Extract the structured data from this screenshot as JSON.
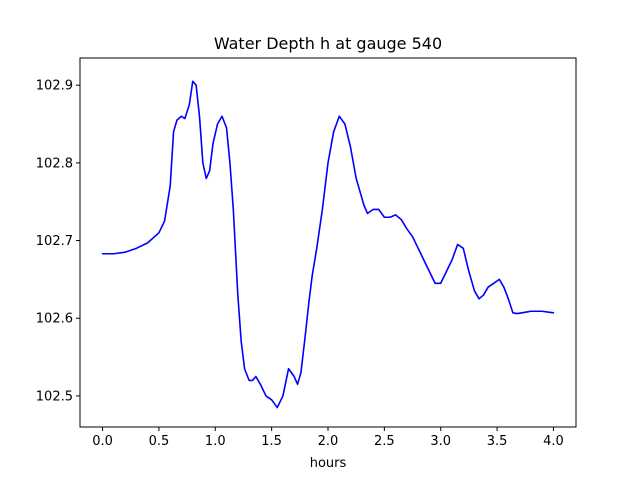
{
  "chart_data": {
    "type": "line",
    "title": "Water Depth h at gauge 540",
    "xlabel": "hours",
    "ylabel": "",
    "xlim": [
      -0.2,
      4.2
    ],
    "ylim": [
      102.46,
      102.935
    ],
    "xticks": [
      0.0,
      0.5,
      1.0,
      1.5,
      2.0,
      2.5,
      3.0,
      3.5,
      4.0
    ],
    "xtick_labels": [
      "0.0",
      "0.5",
      "1.0",
      "1.5",
      "2.0",
      "2.5",
      "3.0",
      "3.5",
      "4.0"
    ],
    "yticks": [
      102.5,
      102.6,
      102.7,
      102.8,
      102.9
    ],
    "ytick_labels": [
      "102.5",
      "102.6",
      "102.7",
      "102.8",
      "102.9"
    ],
    "grid": false,
    "series": [
      {
        "color": "#0000ff",
        "x": [
          0.0,
          0.1,
          0.2,
          0.3,
          0.4,
          0.5,
          0.55,
          0.6,
          0.63,
          0.66,
          0.7,
          0.73,
          0.77,
          0.8,
          0.83,
          0.86,
          0.89,
          0.92,
          0.95,
          0.98,
          1.02,
          1.06,
          1.1,
          1.13,
          1.16,
          1.2,
          1.23,
          1.26,
          1.3,
          1.33,
          1.36,
          1.4,
          1.45,
          1.5,
          1.55,
          1.6,
          1.65,
          1.7,
          1.73,
          1.76,
          1.8,
          1.83,
          1.86,
          1.9,
          1.95,
          2.0,
          2.05,
          2.1,
          2.15,
          2.2,
          2.25,
          2.29,
          2.32,
          2.35,
          2.4,
          2.45,
          2.5,
          2.55,
          2.6,
          2.65,
          2.7,
          2.75,
          2.8,
          2.85,
          2.9,
          2.95,
          3.0,
          3.05,
          3.1,
          3.15,
          3.2,
          3.25,
          3.3,
          3.34,
          3.38,
          3.42,
          3.47,
          3.52,
          3.56,
          3.6,
          3.64,
          3.68,
          3.72,
          3.76,
          3.8,
          3.85,
          3.9,
          3.95,
          4.0
        ],
        "y": [
          102.683,
          102.683,
          102.685,
          102.69,
          102.697,
          102.71,
          102.725,
          102.77,
          102.84,
          102.855,
          102.86,
          102.857,
          102.875,
          102.905,
          102.9,
          102.86,
          102.8,
          102.78,
          102.79,
          102.825,
          102.85,
          102.86,
          102.845,
          102.8,
          102.74,
          102.63,
          102.57,
          102.535,
          102.52,
          102.52,
          102.525,
          102.515,
          102.5,
          102.495,
          102.485,
          102.5,
          102.535,
          102.525,
          102.515,
          102.53,
          102.58,
          102.62,
          102.655,
          102.69,
          102.74,
          102.8,
          102.84,
          102.86,
          102.85,
          102.82,
          102.78,
          102.76,
          102.745,
          102.735,
          102.74,
          102.74,
          102.73,
          102.73,
          102.733,
          102.727,
          102.715,
          102.705,
          102.69,
          102.675,
          102.66,
          102.645,
          102.645,
          102.66,
          102.675,
          102.695,
          102.69,
          102.66,
          102.635,
          102.625,
          102.63,
          102.64,
          102.645,
          102.65,
          102.64,
          102.625,
          102.607,
          102.606,
          102.607,
          102.608,
          102.609,
          102.609,
          102.609,
          102.608,
          102.607
        ]
      }
    ]
  }
}
